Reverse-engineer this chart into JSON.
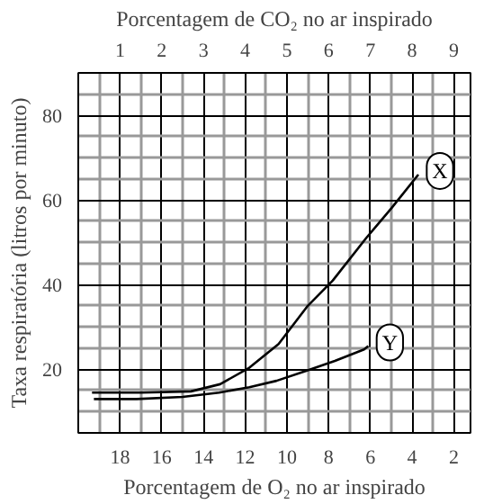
{
  "chart_data": {
    "type": "line",
    "xlabel": "Porcentagem de O₂ no ar inspirado",
    "x2label": "Porcentagem de CO₂ no ar inspirado",
    "ylabel": "Taxa respiratória (litros por minuto)",
    "xlim": [
      20,
      1.2
    ],
    "xticks": [
      {
        "value": 19,
        "label": null
      },
      18,
      {
        "value": 17,
        "label": null
      },
      16,
      {
        "value": 15,
        "label": null
      },
      14,
      {
        "value": 13,
        "label": null
      },
      12,
      {
        "value": 11,
        "label": null
      },
      10,
      {
        "value": 9,
        "label": null
      },
      8,
      {
        "value": 7,
        "label": null
      },
      6,
      {
        "value": 5,
        "label": null
      },
      4,
      {
        "value": 3,
        "label": null
      },
      2
    ],
    "x2lim": [
      0,
      9.4
    ],
    "x2ticks": [
      1,
      2,
      3,
      4,
      5,
      6,
      7,
      8,
      9
    ],
    "ylim": [
      5,
      90
    ],
    "yticks": [
      {
        "value": 10,
        "label": null
      },
      {
        "value": 15,
        "label": null
      },
      20,
      {
        "value": 25,
        "label": null
      },
      {
        "value": 30,
        "label": null
      },
      {
        "value": 35,
        "label": null
      },
      40,
      {
        "value": 45,
        "label": null
      },
      {
        "value": 50,
        "label": null
      },
      {
        "value": 55,
        "label": null
      },
      60,
      {
        "value": 65,
        "label": null
      },
      {
        "value": 70,
        "label": null
      },
      {
        "value": 75,
        "label": null
      },
      80,
      {
        "value": 85,
        "label": null
      }
    ],
    "grid": true,
    "marker": "none",
    "line_style": "solid",
    "series": [
      {
        "name": "X",
        "color": "#000000",
        "axis": "x2",
        "x": [
          0.33,
          1.5,
          2.7,
          3.4,
          4.1,
          4.8,
          5.5,
          6.1,
          6.9,
          7.5,
          8.15
        ],
        "values": [
          14.5,
          14.5,
          14.8,
          16.5,
          20.4,
          26,
          35,
          41,
          51,
          58,
          66
        ]
      },
      {
        "name": "Y",
        "color": "#000000",
        "x": [
          19.25,
          17.2,
          15,
          13.25,
          11.8,
          10.5,
          9.1,
          7.7,
          6.3,
          6.1
        ],
        "values": [
          13,
          13,
          13.5,
          14.5,
          15.8,
          17.3,
          19.6,
          22,
          24.7,
          25.5
        ]
      }
    ]
  }
}
